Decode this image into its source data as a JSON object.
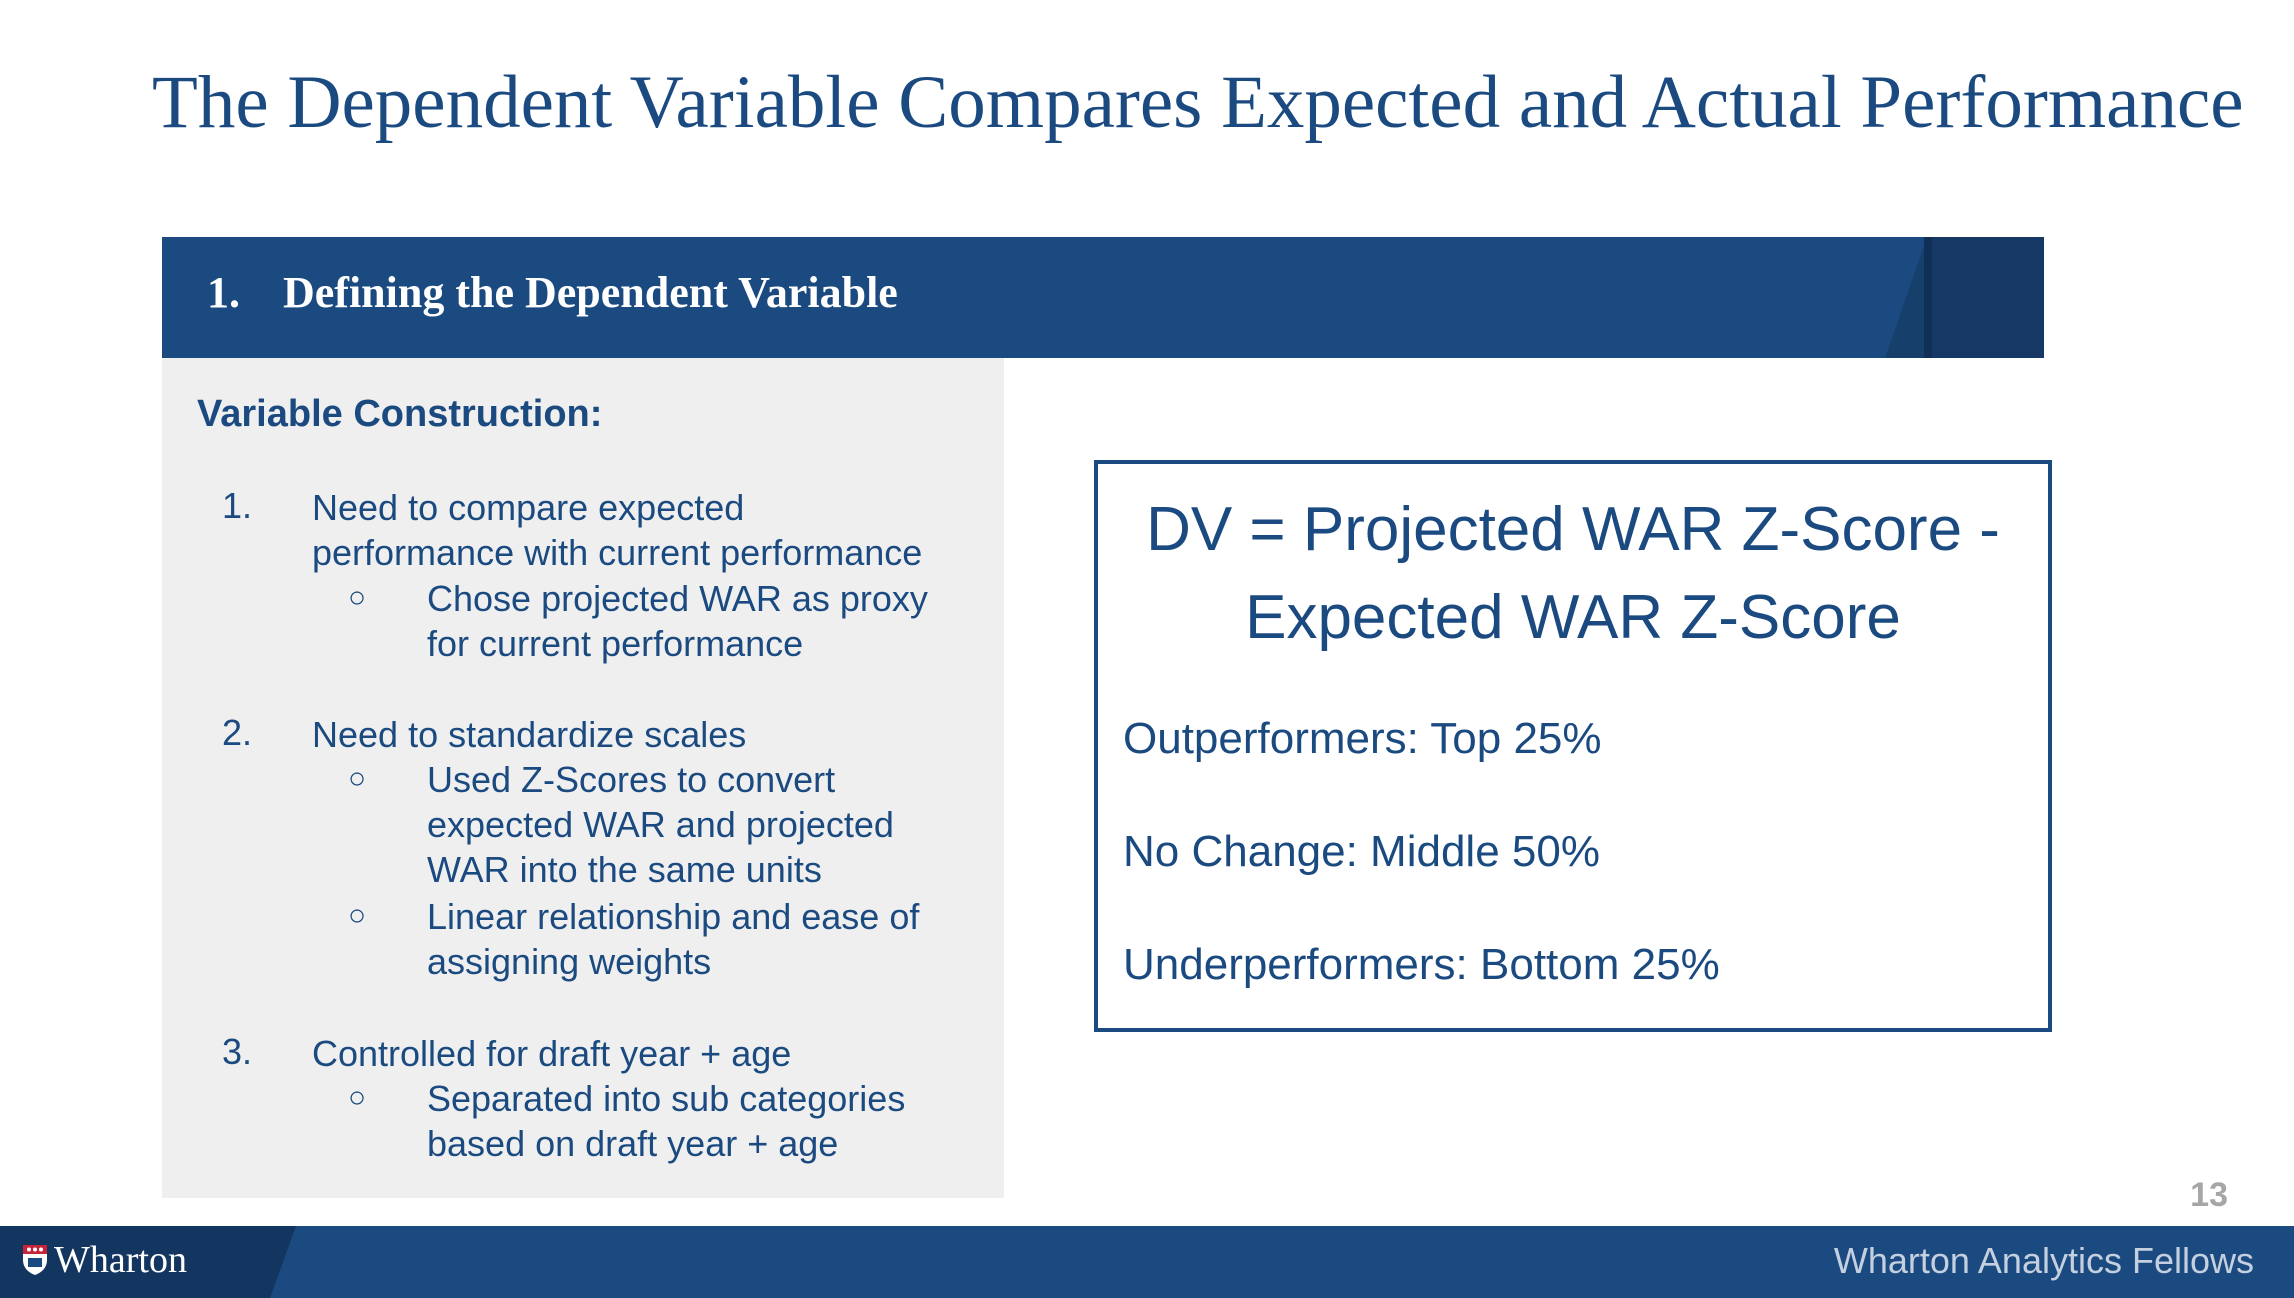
{
  "title": "The Dependent Variable Compares Expected and Actual Performance",
  "section": {
    "number": "1.",
    "label": "Defining the Dependent Variable"
  },
  "panel": {
    "heading": "Variable Construction:",
    "items": [
      {
        "number": "1.",
        "lines": [
          "Need to compare expected",
          "performance with current performance"
        ],
        "sub": [
          {
            "bullet": "○",
            "lines": [
              "Chose projected WAR as proxy",
              "for current performance"
            ]
          }
        ]
      },
      {
        "number": "2.",
        "lines": [
          "Need to standardize scales"
        ],
        "sub": [
          {
            "bullet": "○",
            "lines": [
              "Used Z-Scores to convert",
              "expected WAR and projected",
              "WAR into the same units"
            ]
          },
          {
            "bullet": "○",
            "lines": [
              "Linear relationship and ease of",
              "assigning weights"
            ]
          }
        ]
      },
      {
        "number": "3.",
        "lines": [
          "Controlled for draft year + age"
        ],
        "sub": [
          {
            "bullet": "○",
            "lines": [
              "Separated into sub categories",
              "based on draft year + age"
            ]
          }
        ]
      }
    ]
  },
  "dv_box": {
    "formula_line1": "DV = Projected WAR Z-Score -",
    "formula_line2": "Expected WAR Z-Score",
    "groups": [
      "Outperformers: Top 25%",
      "No Change: Middle 50%",
      "Underperformers: Bottom 25%"
    ]
  },
  "page_number": "13",
  "footer": {
    "logo": "Wharton",
    "org": "Wharton Analytics Fellows"
  }
}
